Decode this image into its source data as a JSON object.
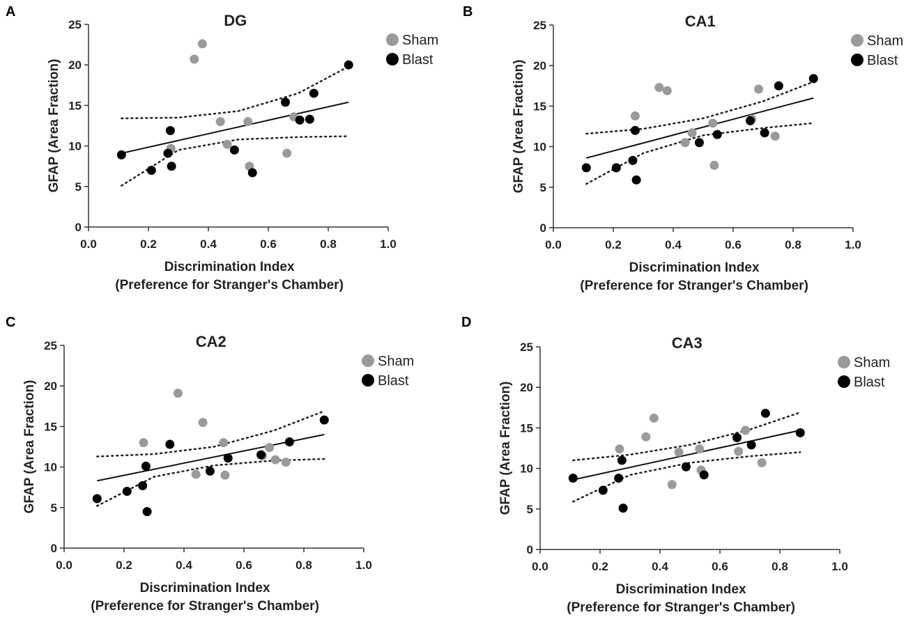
{
  "panels": [
    {
      "letter": "A",
      "chart_data": {
        "type": "scatter",
        "title": "DG",
        "xlabel": "Discrimination Index",
        "xlabel2": "(Preference for Stranger's Chamber)",
        "ylabel": "GFAP (Area  Fraction)",
        "xlim": [
          0,
          1.0
        ],
        "ylim": [
          0,
          25
        ],
        "xticks": [
          "0.0",
          "0.2",
          "0.4",
          "0.6",
          "0.8",
          "1.0"
        ],
        "yticks": [
          "0",
          "5",
          "10",
          "15",
          "20",
          "25"
        ],
        "legend": [
          {
            "name": "Sham",
            "color": "#9a9a9a"
          },
          {
            "name": "Blast",
            "color": "#000000"
          }
        ],
        "series": [
          {
            "name": "Sham",
            "color": "#9a9a9a",
            "points": [
              [
                0.353,
                20.7
              ],
              [
                0.38,
                22.6
              ],
              [
                0.275,
                9.7
              ],
              [
                0.44,
                13.0
              ],
              [
                0.463,
                10.2
              ],
              [
                0.532,
                13.0
              ],
              [
                0.537,
                7.5
              ],
              [
                0.662,
                9.1
              ],
              [
                0.685,
                13.6
              ]
            ]
          },
          {
            "name": "Blast",
            "color": "#000000",
            "points": [
              [
                0.11,
                8.9
              ],
              [
                0.21,
                7.0
              ],
              [
                0.265,
                9.1
              ],
              [
                0.273,
                11.9
              ],
              [
                0.277,
                7.5
              ],
              [
                0.487,
                9.5
              ],
              [
                0.547,
                6.7
              ],
              [
                0.657,
                15.4
              ],
              [
                0.705,
                13.2
              ],
              [
                0.738,
                13.3
              ],
              [
                0.752,
                16.5
              ],
              [
                0.868,
                20.0
              ]
            ]
          }
        ],
        "fit": {
          "x": [
            0.11,
            0.868
          ],
          "y": [
            9.1,
            15.4
          ]
        },
        "ci_upper": [
          [
            0.11,
            13.4
          ],
          [
            0.3,
            13.5
          ],
          [
            0.5,
            14.3
          ],
          [
            0.7,
            16.5
          ],
          [
            0.868,
            19.8
          ]
        ],
        "ci_lower": [
          [
            0.11,
            5.1
          ],
          [
            0.3,
            9.5
          ],
          [
            0.5,
            10.8
          ],
          [
            0.7,
            11.1
          ],
          [
            0.868,
            11.2
          ]
        ]
      }
    },
    {
      "letter": "B",
      "chart_data": {
        "type": "scatter",
        "title": "CA1",
        "xlabel": "Discrimination Index",
        "xlabel2": "(Preference for Stranger's Chamber)",
        "ylabel": "GFAP (Area  Fraction)",
        "xlim": [
          0,
          1.0
        ],
        "ylim": [
          0,
          25
        ],
        "xticks": [
          "0.0",
          "0.2",
          "0.4",
          "0.6",
          "0.8",
          "1.0"
        ],
        "yticks": [
          "0",
          "5",
          "10",
          "15",
          "20",
          "25"
        ],
        "legend": [
          {
            "name": "Sham",
            "color": "#9a9a9a"
          },
          {
            "name": "Blast",
            "color": "#000000"
          }
        ],
        "series": [
          {
            "name": "Sham",
            "color": "#9a9a9a",
            "points": [
              [
                0.273,
                13.8
              ],
              [
                0.353,
                17.3
              ],
              [
                0.38,
                16.9
              ],
              [
                0.44,
                10.5
              ],
              [
                0.463,
                11.7
              ],
              [
                0.532,
                12.9
              ],
              [
                0.537,
                7.7
              ],
              [
                0.662,
                13.4
              ],
              [
                0.685,
                17.1
              ],
              [
                0.74,
                11.3
              ]
            ]
          },
          {
            "name": "Blast",
            "color": "#000000",
            "points": [
              [
                0.11,
                7.4
              ],
              [
                0.21,
                7.4
              ],
              [
                0.265,
                8.3
              ],
              [
                0.273,
                12.0
              ],
              [
                0.277,
                5.9
              ],
              [
                0.487,
                10.5
              ],
              [
                0.547,
                11.5
              ],
              [
                0.657,
                13.2
              ],
              [
                0.705,
                11.7
              ],
              [
                0.752,
                17.5
              ],
              [
                0.868,
                18.4
              ]
            ]
          }
        ],
        "fit": {
          "x": [
            0.11,
            0.868
          ],
          "y": [
            8.6,
            16.0
          ]
        },
        "ci_upper": [
          [
            0.11,
            11.6
          ],
          [
            0.3,
            12.2
          ],
          [
            0.5,
            13.5
          ],
          [
            0.7,
            15.6
          ],
          [
            0.868,
            18.0
          ]
        ],
        "ci_lower": [
          [
            0.11,
            5.4
          ],
          [
            0.3,
            9.2
          ],
          [
            0.5,
            11.4
          ],
          [
            0.7,
            12.3
          ],
          [
            0.868,
            12.9
          ]
        ]
      }
    },
    {
      "letter": "C",
      "chart_data": {
        "type": "scatter",
        "title": "CA2",
        "xlabel": "Discrimination Index",
        "xlabel2": "(Preference for Stranger's Chamber)",
        "ylabel": "GFAP (Area  Fraction)",
        "xlim": [
          0,
          1.0
        ],
        "ylim": [
          0,
          25
        ],
        "xticks": [
          "0.0",
          "0.2",
          "0.4",
          "0.6",
          "0.8",
          "1.0"
        ],
        "yticks": [
          "0",
          "5",
          "10",
          "15",
          "20",
          "25"
        ],
        "legend": [
          {
            "name": "Sham",
            "color": "#9a9a9a"
          },
          {
            "name": "Blast",
            "color": "#000000"
          }
        ],
        "series": [
          {
            "name": "Sham",
            "color": "#9a9a9a",
            "points": [
              [
                0.265,
                13.0
              ],
              [
                0.38,
                19.1
              ],
              [
                0.44,
                9.1
              ],
              [
                0.463,
                15.5
              ],
              [
                0.532,
                13.0
              ],
              [
                0.537,
                9.0
              ],
              [
                0.662,
                11.4
              ],
              [
                0.685,
                12.4
              ],
              [
                0.705,
                10.9
              ],
              [
                0.74,
                10.6
              ]
            ]
          },
          {
            "name": "Blast",
            "color": "#000000",
            "points": [
              [
                0.11,
                6.1
              ],
              [
                0.21,
                7.0
              ],
              [
                0.262,
                7.7
              ],
              [
                0.273,
                10.1
              ],
              [
                0.277,
                4.5
              ],
              [
                0.353,
                12.8
              ],
              [
                0.487,
                9.5
              ],
              [
                0.547,
                11.1
              ],
              [
                0.657,
                11.5
              ],
              [
                0.752,
                13.1
              ],
              [
                0.868,
                15.8
              ]
            ]
          }
        ],
        "fit": {
          "x": [
            0.11,
            0.868
          ],
          "y": [
            8.3,
            14.0
          ]
        },
        "ci_upper": [
          [
            0.11,
            11.3
          ],
          [
            0.3,
            11.6
          ],
          [
            0.5,
            12.5
          ],
          [
            0.7,
            14.5
          ],
          [
            0.868,
            16.9
          ]
        ],
        "ci_lower": [
          [
            0.11,
            5.2
          ],
          [
            0.3,
            8.8
          ],
          [
            0.5,
            10.2
          ],
          [
            0.7,
            10.8
          ],
          [
            0.868,
            11.0
          ]
        ]
      }
    },
    {
      "letter": "D",
      "chart_data": {
        "type": "scatter",
        "title": "CA3",
        "xlabel": "Discrimination Index",
        "xlabel2": "(Preference for Stranger's Chamber)",
        "ylabel": "GFAP (Area  Fraction)",
        "xlim": [
          0,
          1.0
        ],
        "ylim": [
          0,
          25
        ],
        "xticks": [
          "0.0",
          "0.2",
          "0.4",
          "0.6",
          "0.8",
          "1.0"
        ],
        "yticks": [
          "0",
          "5",
          "10",
          "15",
          "20",
          "25"
        ],
        "legend": [
          {
            "name": "Sham",
            "color": "#9a9a9a"
          },
          {
            "name": "Blast",
            "color": "#000000"
          }
        ],
        "series": [
          {
            "name": "Sham",
            "color": "#9a9a9a",
            "points": [
              [
                0.265,
                12.4
              ],
              [
                0.353,
                13.9
              ],
              [
                0.38,
                16.2
              ],
              [
                0.44,
                8.0
              ],
              [
                0.463,
                12.0
              ],
              [
                0.532,
                12.4
              ],
              [
                0.537,
                9.8
              ],
              [
                0.662,
                12.1
              ],
              [
                0.685,
                14.7
              ],
              [
                0.74,
                10.7
              ]
            ]
          },
          {
            "name": "Blast",
            "color": "#000000",
            "points": [
              [
                0.11,
                8.8
              ],
              [
                0.21,
                7.3
              ],
              [
                0.262,
                8.8
              ],
              [
                0.273,
                11.0
              ],
              [
                0.277,
                5.1
              ],
              [
                0.487,
                10.2
              ],
              [
                0.547,
                9.2
              ],
              [
                0.657,
                13.8
              ],
              [
                0.705,
                12.9
              ],
              [
                0.752,
                16.8
              ],
              [
                0.868,
                14.4
              ]
            ]
          }
        ],
        "fit": {
          "x": [
            0.11,
            0.868
          ],
          "y": [
            8.6,
            14.7
          ]
        },
        "ci_upper": [
          [
            0.11,
            11.0
          ],
          [
            0.3,
            11.7
          ],
          [
            0.5,
            12.9
          ],
          [
            0.7,
            14.8
          ],
          [
            0.868,
            16.9
          ]
        ],
        "ci_lower": [
          [
            0.11,
            5.9
          ],
          [
            0.3,
            9.2
          ],
          [
            0.5,
            10.7
          ],
          [
            0.7,
            11.5
          ],
          [
            0.868,
            12.0
          ]
        ]
      }
    }
  ]
}
